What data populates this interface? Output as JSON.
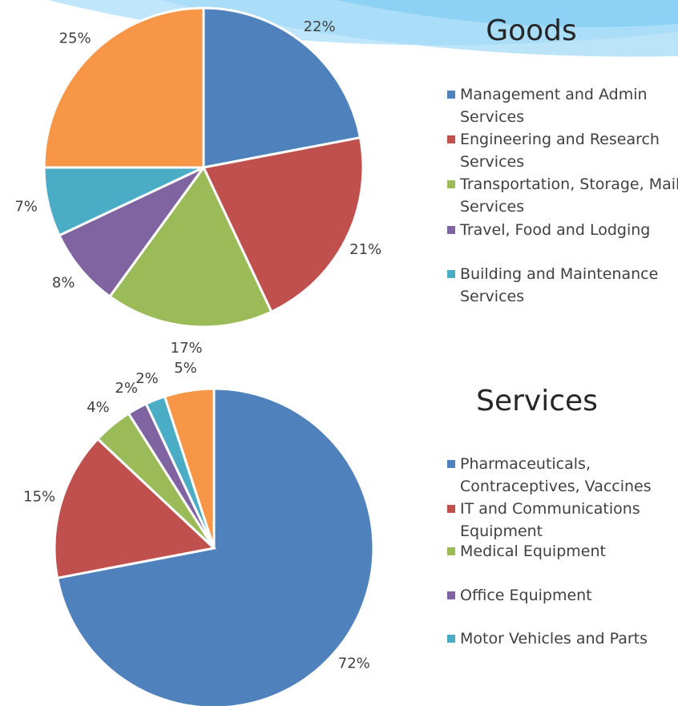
{
  "chart_data": [
    {
      "type": "pie",
      "title": "Goods",
      "categories": [
        "Management and Admin Services",
        "Engineering and Research Services",
        "Transportation, Storage, Mail Services",
        "Travel, Food and Lodging",
        "Building and Maintenance Services",
        null
      ],
      "values": [
        22,
        21,
        17,
        8,
        7,
        25
      ],
      "value_labels": [
        "22%",
        "21%",
        "17%",
        "8%",
        "7%",
        "25%"
      ],
      "colors": [
        "#4f81bd",
        "#c0504d",
        "#9bbb59",
        "#8064a2",
        "#4bacc6",
        "#f79646"
      ]
    },
    {
      "type": "pie",
      "title": "Services",
      "categories": [
        "Pharmaceuticals, Contraceptives, Vaccines",
        "IT and Communications Equipment",
        "Medical Equipment",
        "Office Equipment",
        "Motor Vehicles and Parts",
        null
      ],
      "values": [
        72,
        15,
        4,
        2,
        2,
        5
      ],
      "value_labels": [
        "72%",
        "15%",
        "4%",
        "2%",
        "2%",
        "5%"
      ],
      "colors": [
        "#4f81bd",
        "#c0504d",
        "#9bbb59",
        "#8064a2",
        "#4bacc6",
        "#f79646"
      ]
    }
  ]
}
